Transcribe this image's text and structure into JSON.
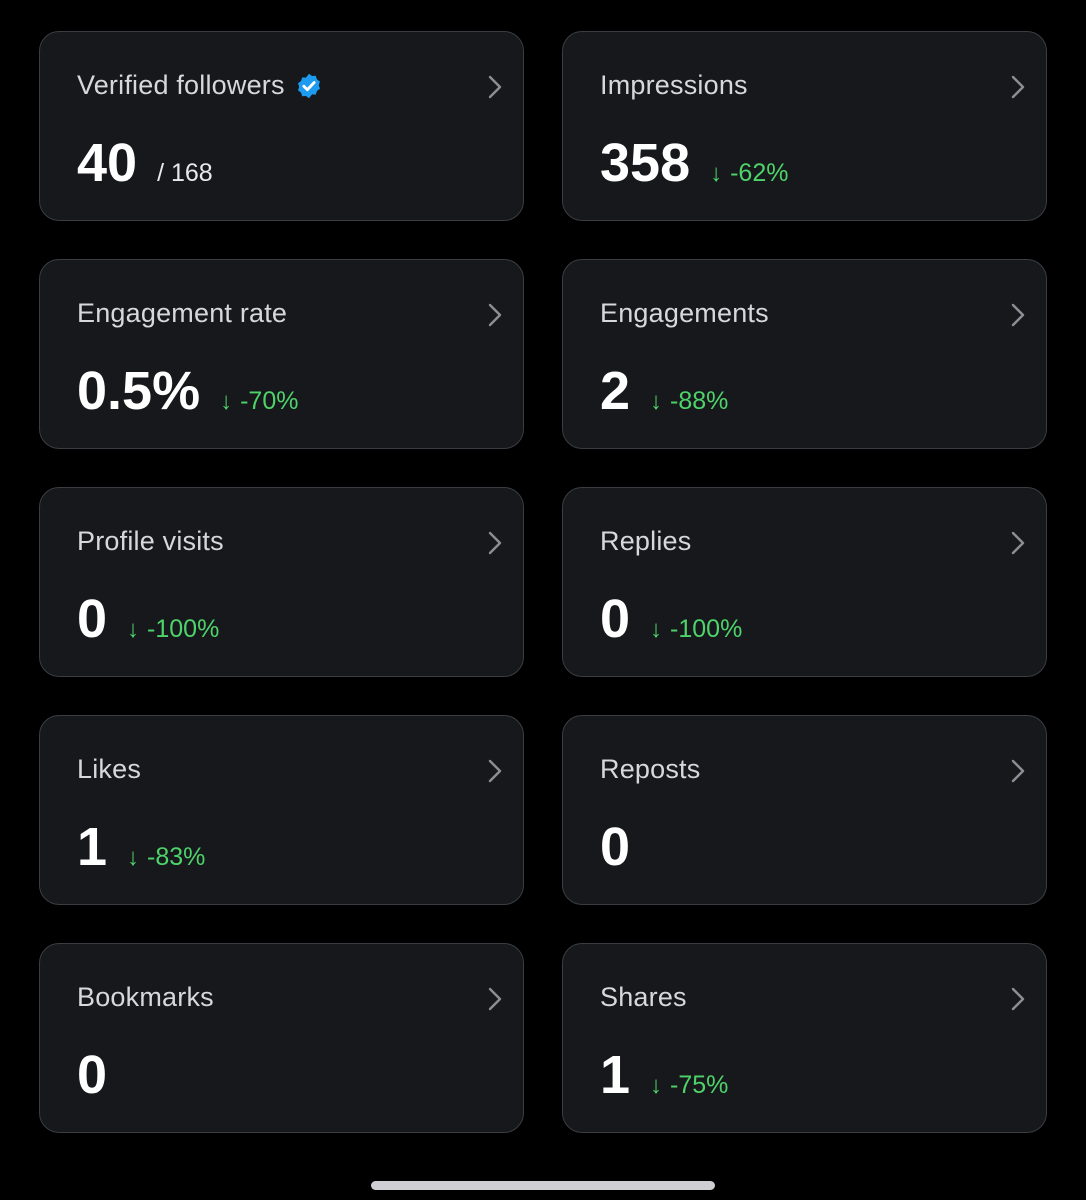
{
  "colors": {
    "background": "#000000",
    "card": "#16181c",
    "card_border": "#3a3d42",
    "positive_change": "#4ed36a",
    "verified_badge": "#1d9bf0"
  },
  "cards": [
    {
      "label": "Verified followers",
      "value": "40",
      "suffix": "/ 168",
      "verified": true
    },
    {
      "label": "Impressions",
      "value": "358",
      "change": "-62%"
    },
    {
      "label": "Engagement rate",
      "value": "0.5%",
      "change": "-70%"
    },
    {
      "label": "Engagements",
      "value": "2",
      "change": "-88%"
    },
    {
      "label": "Profile visits",
      "value": "0",
      "change": "-100%"
    },
    {
      "label": "Replies",
      "value": "0",
      "change": "-100%"
    },
    {
      "label": "Likes",
      "value": "1",
      "change": "-83%"
    },
    {
      "label": "Reposts",
      "value": "0"
    },
    {
      "label": "Bookmarks",
      "value": "0"
    },
    {
      "label": "Shares",
      "value": "1",
      "change": "-75%"
    }
  ],
  "icons": {
    "arrow": "↓",
    "chevron": "chevron-right-icon",
    "verified": "verified-badge-icon"
  }
}
